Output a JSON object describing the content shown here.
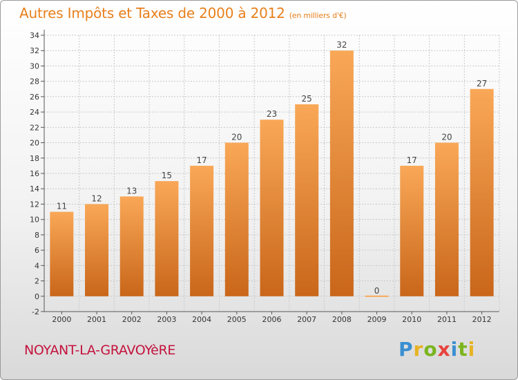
{
  "header": {
    "title": "Autres Impôts et Taxes de 2000 à 2012",
    "subtitle": "(en milliers d'€)"
  },
  "footer": {
    "commune": "NOYANT-LA-GRAVOYèRE",
    "brand_letters": [
      "P",
      "r",
      "o",
      "x",
      "i",
      "t",
      "i"
    ],
    "brand_colors": [
      "#3a8fd1",
      "#e8b221",
      "#7ab51d",
      "#e8423c",
      "#3a8fd1",
      "#7ab51d",
      "#e8b221"
    ]
  },
  "chart_data": {
    "type": "bar",
    "categories": [
      "2000",
      "2001",
      "2002",
      "2003",
      "2004",
      "2005",
      "2006",
      "2007",
      "2008",
      "2009",
      "2010",
      "2011",
      "2012"
    ],
    "values": [
      11,
      12,
      13,
      15,
      17,
      20,
      23,
      25,
      32,
      0,
      17,
      20,
      27
    ],
    "data_labels": [
      "11",
      "12",
      "13",
      "15",
      "17",
      "20",
      "23",
      "25",
      "32",
      "0",
      "17",
      "20",
      "27"
    ],
    "y_ticks": [
      "-2",
      "0",
      "2",
      "4",
      "6",
      "8",
      "10",
      "12",
      "14",
      "16",
      "18",
      "20",
      "22",
      "24",
      "26",
      "28",
      "30",
      "32",
      "34"
    ],
    "ylim": [
      -2,
      34
    ],
    "grid": true,
    "colors": {
      "bar_top": "#f9a857",
      "bar_bottom": "#c9661a",
      "grid": "#c8c8c8"
    }
  }
}
